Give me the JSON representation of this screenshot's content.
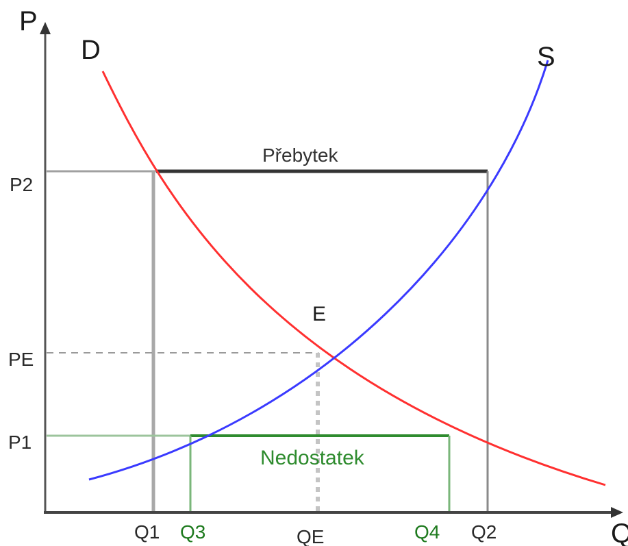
{
  "axes": {
    "y_label": "P",
    "x_label": "Q"
  },
  "curves": {
    "demand_label": "D",
    "supply_label": "S",
    "demand_color": "#ff3030",
    "supply_color": "#3a3aff"
  },
  "equilibrium_label": "E",
  "regions": {
    "surplus_label": "Přebytek",
    "shortage_label": "Nedostatek",
    "surplus_color": "#333333",
    "shortage_color": "#2e8b2e"
  },
  "price_ticks": {
    "p2": "P2",
    "pe": "PE",
    "p1": "P1"
  },
  "quantity_ticks": {
    "q1": "Q1",
    "q3": "Q3",
    "qe": "QE",
    "q4": "Q4",
    "q2": "Q2"
  }
}
